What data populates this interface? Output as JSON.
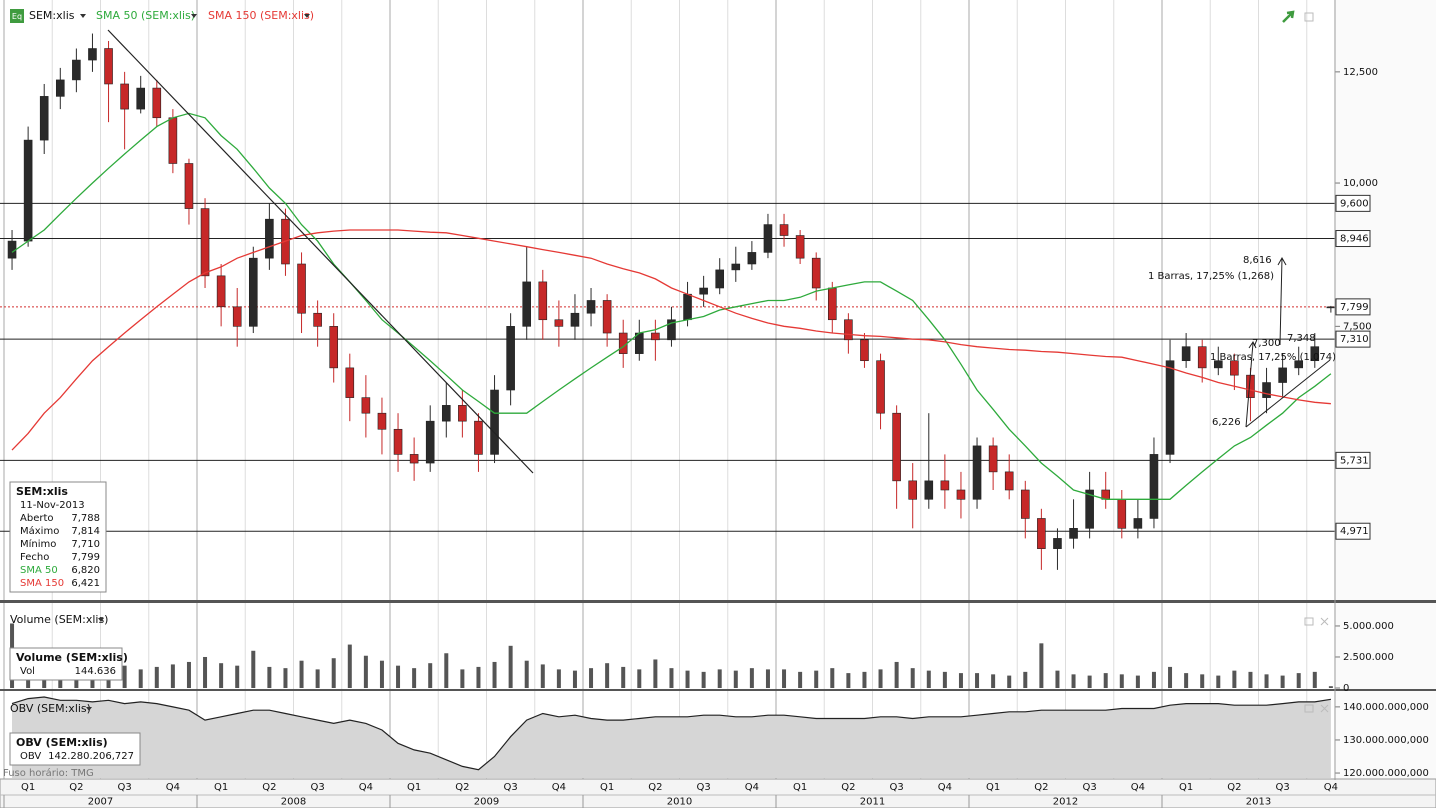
{
  "toolbar": {
    "symbol": "SEM:xlis",
    "icon": "Eq"
  },
  "time_axis": {
    "quarters": [
      "Q1",
      "Q2",
      "Q3",
      "Q4",
      "Q1",
      "Q2",
      "Q3",
      "Q4",
      "Q1",
      "Q2",
      "Q3",
      "Q4",
      "Q1",
      "Q2",
      "Q3",
      "Q4",
      "Q1",
      "Q2",
      "Q3",
      "Q4",
      "Q1",
      "Q2",
      "Q3",
      "Q4",
      "Q1",
      "Q2",
      "Q3",
      "Q4"
    ],
    "years": [
      "2007",
      "2008",
      "2009",
      "2010",
      "2011",
      "2012",
      "2013"
    ]
  },
  "chart_data": [
    {
      "type": "candlestick",
      "log": true,
      "ylim": [
        4.33,
        14.44
      ],
      "yticks": [
        {
          "value": 12.5,
          "label": "12,500"
        },
        {
          "value": 10,
          "label": "10,000"
        },
        {
          "value": 7.5,
          "label": "7,500"
        }
      ],
      "up_color": "#2a2a2a",
      "down_color": "#c62828",
      "open": [
        8.6,
        8.9,
        10.9,
        11.9,
        12.3,
        12.8,
        13.1,
        12.2,
        11.6,
        12.1,
        11.4,
        10.4,
        9.5,
        8.3,
        7.8,
        7.5,
        8.6,
        9.3,
        8.5,
        7.7,
        7.5,
        6.9,
        6.5,
        6.3,
        6.1,
        5.8,
        5.7,
        6.2,
        6.4,
        6.2,
        5.8,
        6.6,
        7.5,
        8.2,
        7.6,
        7.5,
        7.7,
        7.9,
        7.4,
        7.1,
        7.4,
        7.3,
        7.6,
        8.0,
        8.1,
        8.4,
        8.5,
        8.7,
        9.2,
        9.0,
        8.6,
        8.1,
        7.6,
        7.3,
        7.0,
        6.3,
        5.5,
        5.3,
        5.5,
        5.4,
        5.3,
        5.9,
        5.6,
        5.4,
        5.1,
        4.8,
        4.9,
        5.0,
        5.4,
        5.3,
        5.0,
        5.1,
        5.8,
        7.0,
        7.2,
        6.9,
        7.0,
        6.8,
        6.5,
        6.7,
        6.9,
        7.0,
        7.788
      ],
      "high": [
        9.1,
        11.2,
        12.2,
        12.6,
        13.1,
        13.5,
        13.3,
        12.5,
        12.4,
        12.3,
        11.6,
        10.5,
        9.7,
        8.5,
        8.1,
        8.8,
        9.6,
        9.5,
        8.7,
        7.9,
        7.7,
        7.1,
        6.8,
        6.5,
        6.3,
        6.0,
        6.4,
        6.7,
        6.6,
        6.3,
        6.8,
        7.7,
        8.8,
        8.4,
        7.9,
        8.0,
        8.1,
        8.0,
        7.6,
        7.6,
        7.6,
        7.8,
        8.2,
        8.3,
        8.6,
        8.8,
        8.9,
        9.4,
        9.4,
        9.1,
        8.7,
        8.2,
        7.7,
        7.4,
        7.1,
        6.4,
        5.7,
        6.3,
        5.8,
        5.6,
        6.0,
        6.0,
        5.8,
        5.5,
        5.2,
        5.0,
        5.3,
        5.6,
        5.6,
        5.4,
        5.3,
        6.0,
        7.3,
        7.4,
        7.3,
        7.2,
        7.1,
        6.9,
        6.9,
        7.1,
        7.2,
        7.4,
        7.814
      ],
      "low": [
        8.4,
        8.8,
        10.6,
        11.6,
        12.0,
        12.5,
        11.3,
        10.7,
        11.5,
        11.2,
        10.2,
        9.2,
        8.1,
        7.5,
        7.2,
        7.4,
        8.4,
        8.3,
        7.4,
        7.2,
        6.7,
        6.2,
        6.0,
        5.8,
        5.6,
        5.5,
        5.6,
        6.0,
        6.0,
        5.6,
        5.7,
        6.4,
        7.3,
        7.3,
        7.2,
        7.3,
        7.5,
        7.2,
        6.9,
        7.0,
        7.0,
        7.2,
        7.5,
        7.8,
        8.0,
        8.2,
        8.4,
        8.6,
        8.8,
        8.5,
        7.9,
        7.4,
        7.1,
        6.9,
        6.1,
        5.2,
        5.0,
        5.2,
        5.2,
        5.1,
        5.2,
        5.4,
        5.3,
        4.9,
        4.6,
        4.6,
        4.8,
        4.9,
        5.2,
        4.9,
        4.9,
        5.0,
        5.7,
        6.9,
        6.7,
        6.8,
        6.6,
        6.2,
        6.3,
        6.5,
        6.8,
        6.9,
        7.71
      ],
      "close": [
        8.9,
        10.9,
        11.9,
        12.3,
        12.8,
        13.1,
        12.2,
        11.6,
        12.1,
        11.4,
        10.4,
        9.5,
        8.3,
        7.8,
        7.5,
        8.6,
        9.3,
        8.5,
        7.7,
        7.5,
        6.9,
        6.5,
        6.3,
        6.1,
        5.8,
        5.7,
        6.2,
        6.4,
        6.2,
        5.8,
        6.6,
        7.5,
        8.2,
        7.6,
        7.5,
        7.7,
        7.9,
        7.4,
        7.1,
        7.4,
        7.3,
        7.6,
        8.0,
        8.1,
        8.4,
        8.5,
        8.7,
        9.2,
        9.0,
        8.6,
        8.1,
        7.6,
        7.3,
        7.0,
        6.3,
        5.5,
        5.3,
        5.5,
        5.4,
        5.3,
        5.9,
        5.6,
        5.4,
        5.1,
        4.8,
        4.9,
        5.0,
        5.4,
        5.3,
        5.0,
        5.1,
        5.8,
        7.0,
        7.2,
        6.9,
        7.0,
        6.8,
        6.5,
        6.7,
        6.9,
        7.0,
        7.2,
        7.799
      ],
      "series": [
        {
          "name": "SMA 50 (SEM:xlis)",
          "color": "#2eaa3c",
          "values": [
            8.7,
            8.9,
            9.1,
            9.4,
            9.7,
            10.0,
            10.3,
            10.6,
            10.9,
            11.2,
            11.4,
            11.5,
            11.4,
            11.0,
            10.7,
            10.3,
            9.9,
            9.6,
            9.2,
            8.9,
            8.5,
            8.2,
            7.9,
            7.6,
            7.4,
            7.2,
            7.0,
            6.8,
            6.6,
            6.45,
            6.3,
            6.3,
            6.3,
            6.45,
            6.6,
            6.75,
            6.9,
            7.05,
            7.2,
            7.4,
            7.45,
            7.55,
            7.6,
            7.65,
            7.75,
            7.8,
            7.85,
            7.9,
            7.9,
            7.95,
            8.05,
            8.1,
            8.15,
            8.2,
            8.2,
            8.05,
            7.9,
            7.6,
            7.3,
            6.95,
            6.6,
            6.35,
            6.1,
            5.9,
            5.7,
            5.55,
            5.4,
            5.35,
            5.3,
            5.3,
            5.3,
            5.3,
            5.3,
            5.45,
            5.6,
            5.75,
            5.9,
            6.0,
            6.15,
            6.3,
            6.5,
            6.65,
            6.82
          ]
        },
        {
          "name": "SMA 150 (SEM:xlis)",
          "color": "#e53935",
          "values": [
            5.85,
            6.05,
            6.3,
            6.5,
            6.75,
            7.0,
            7.2,
            7.4,
            7.6,
            7.8,
            8.0,
            8.2,
            8.35,
            8.45,
            8.6,
            8.7,
            8.8,
            8.9,
            9.0,
            9.05,
            9.08,
            9.1,
            9.1,
            9.1,
            9.1,
            9.08,
            9.06,
            9.05,
            9.0,
            8.95,
            8.9,
            8.85,
            8.8,
            8.75,
            8.7,
            8.65,
            8.6,
            8.5,
            8.42,
            8.35,
            8.25,
            8.1,
            8.0,
            7.9,
            7.8,
            7.7,
            7.62,
            7.55,
            7.5,
            7.47,
            7.43,
            7.4,
            7.38,
            7.36,
            7.35,
            7.33,
            7.31,
            7.3,
            7.27,
            7.23,
            7.2,
            7.18,
            7.16,
            7.15,
            7.13,
            7.12,
            7.1,
            7.08,
            7.06,
            7.05,
            7.0,
            6.95,
            6.9,
            6.83,
            6.77,
            6.7,
            6.65,
            6.6,
            6.55,
            6.51,
            6.47,
            6.44,
            6.421
          ]
        }
      ],
      "levels": [
        {
          "value": 9.6,
          "label": "9,600"
        },
        {
          "value": 8.946,
          "label": "8,946"
        },
        {
          "value": 7.31,
          "label": "7,310"
        },
        {
          "value": 5.731,
          "label": "5,731"
        },
        {
          "value": 4.971,
          "label": "4,971"
        }
      ],
      "last": {
        "value": 7.799,
        "label": "7,799",
        "color": "#d32f2f"
      },
      "annotations": [
        "8,616",
        "1 Barras, 17,25% (1,268)",
        "7,300",
        "7,348",
        "1 Barras, 17,25% (1,074)",
        "6,226"
      ],
      "info": {
        "title": "SEM:xlis",
        "date": "11-Nov-2013",
        "rows": [
          [
            "Aberto",
            "7,788"
          ],
          [
            "Máximo",
            "7,814"
          ],
          [
            "Mínimo",
            "7,710"
          ],
          [
            "Fecho",
            "7,799"
          ],
          [
            "SMA 50",
            "6,820"
          ],
          [
            "SMA 150",
            "6,421"
          ]
        ]
      }
    },
    {
      "type": "bar",
      "title": "Volume (SEM:xlis)",
      "color": "#555555",
      "ylim": [
        0,
        6770000
      ],
      "yticks": [
        {
          "value": 5000000,
          "label": "5.000.000"
        },
        {
          "value": 2500000,
          "label": "2.500.000"
        },
        0
      ],
      "values": [
        5200000,
        2000000,
        1500000,
        1800000,
        1600000,
        1400000,
        2200000,
        1800000,
        1500000,
        1700000,
        1900000,
        2100000,
        2500000,
        2000000,
        1800000,
        3000000,
        1700000,
        1600000,
        2200000,
        1500000,
        2400000,
        3500000,
        2600000,
        2200000,
        1800000,
        1600000,
        2000000,
        2800000,
        1500000,
        1700000,
        2100000,
        3400000,
        2200000,
        1900000,
        1500000,
        1400000,
        1600000,
        2000000,
        1700000,
        1500000,
        2300000,
        1600000,
        1400000,
        1300000,
        1500000,
        1400000,
        1600000,
        1500000,
        1500000,
        1300000,
        1400000,
        1600000,
        1200000,
        1300000,
        1500000,
        2100000,
        1600000,
        1400000,
        1300000,
        1200000,
        1200000,
        1100000,
        1000000,
        1300000,
        3600000,
        1400000,
        1100000,
        1000000,
        1200000,
        1100000,
        1000000,
        1300000,
        1700000,
        1200000,
        1100000,
        1000000,
        1400000,
        1300000,
        1100000,
        1000000,
        1200000,
        1300000,
        144636
      ],
      "info": {
        "title": "Volume (SEM:xlis)",
        "rows": [
          [
            "Vol",
            "144.636"
          ]
        ]
      }
    },
    {
      "type": "area",
      "title": "OBV (SEM:xlis)",
      "color": "#222222",
      "ylim": [
        118500000000,
        144500000000
      ],
      "yticks": [
        {
          "value": 140000000000,
          "label": "140.000.000,000"
        },
        {
          "value": 130000000000,
          "label": "130.000.000,000"
        },
        {
          "value": 120000000000,
          "label": "120.000.000,000"
        }
      ],
      "values": [
        141000000000,
        142500000000,
        143000000000,
        142000000000,
        142000000000,
        141500000000,
        142000000000,
        141000000000,
        141500000000,
        141000000000,
        140000000000,
        139000000000,
        136000000000,
        137000000000,
        138000000000,
        139000000000,
        139000000000,
        138000000000,
        137000000000,
        136000000000,
        135000000000,
        136000000000,
        135000000000,
        133000000000,
        129000000000,
        127000000000,
        126000000000,
        124000000000,
        122000000000,
        121000000000,
        125000000000,
        131000000000,
        136000000000,
        138000000000,
        137000000000,
        137500000000,
        136500000000,
        136000000000,
        136000000000,
        136500000000,
        137000000000,
        137000000000,
        137000000000,
        137500000000,
        137500000000,
        137000000000,
        137000000000,
        137500000000,
        137500000000,
        137000000000,
        136500000000,
        136500000000,
        136500000000,
        136500000000,
        137000000000,
        137000000000,
        136500000000,
        137000000000,
        137000000000,
        137000000000,
        137500000000,
        138000000000,
        138500000000,
        138500000000,
        139000000000,
        139000000000,
        139000000000,
        139000000000,
        139000000000,
        139500000000,
        139500000000,
        139500000000,
        140500000000,
        141000000000,
        141000000000,
        141000000000,
        140500000000,
        140500000000,
        140500000000,
        141000000000,
        141500000000,
        141500000000,
        142280206727
      ],
      "info": {
        "title": "OBV (SEM:xlis)",
        "rows": [
          [
            "OBV",
            "142.280.206,727"
          ]
        ]
      },
      "footnote": "Fuso horário: TMG"
    }
  ]
}
